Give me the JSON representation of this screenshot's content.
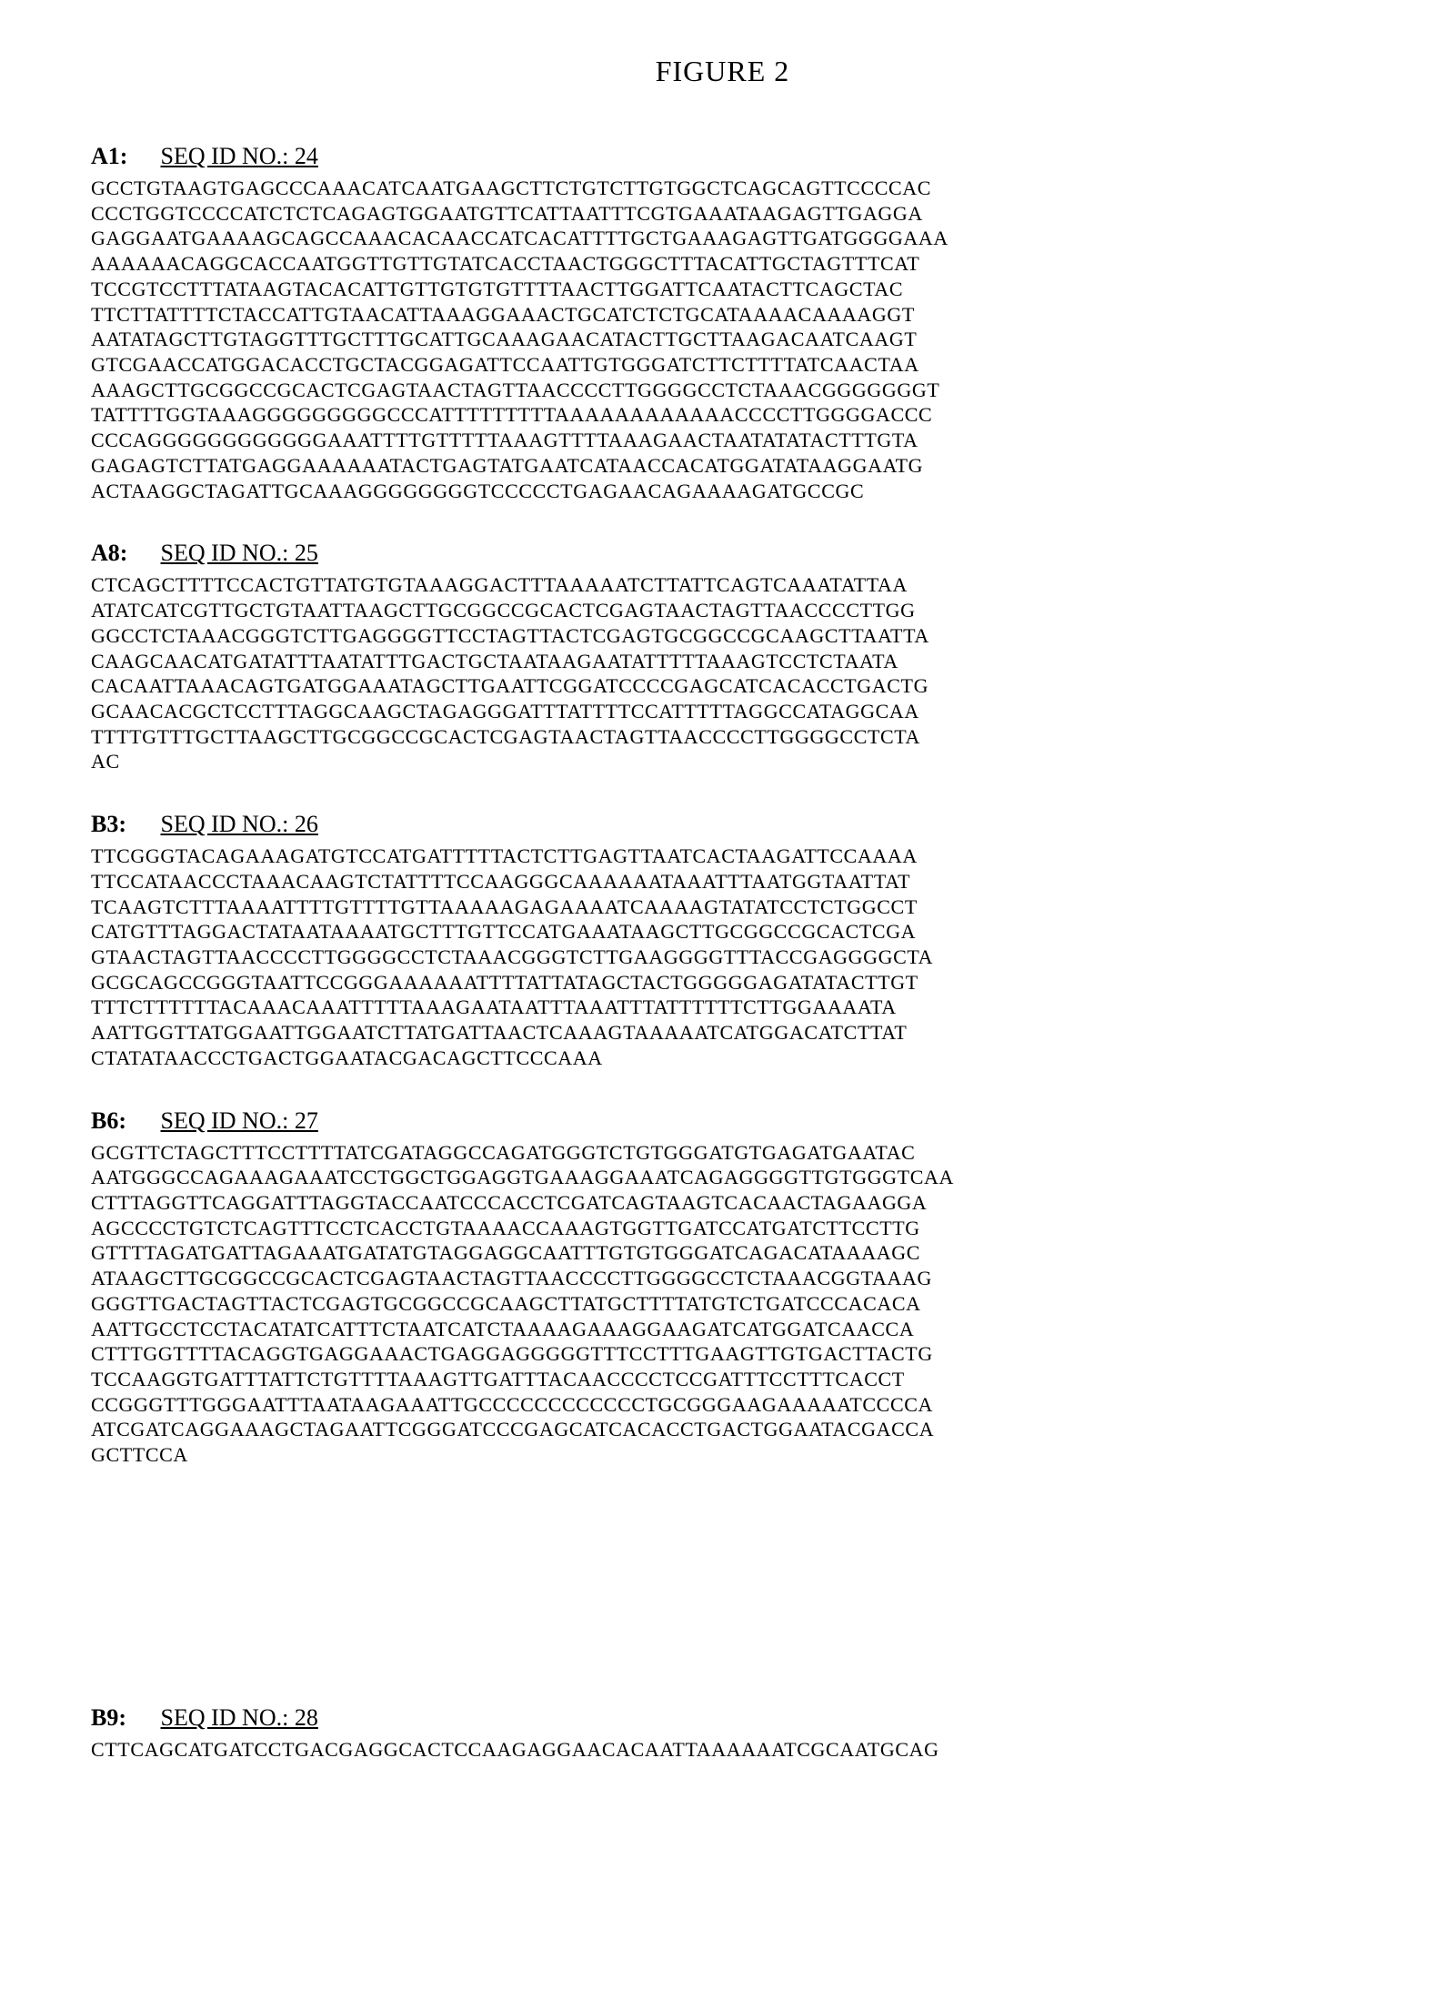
{
  "figure_title": "FIGURE 2",
  "sequences": [
    {
      "label": "A1:",
      "id_text": "SEQ ID NO.: 24",
      "body": "GCCTGTAAGTGAGCCCAAACATCAATGAAGCTTCTGTCTTGTGGCTCAGCAGTTCCCCAC\nCCCTGGTCCCCATCTCTCAGAGTGGAATGTTCATTAATTTCGTGAAATAAGAGTTGAGGA\nGAGGAATGAAAAGCAGCCAAACACAACCATCACATTTTGCTGAAAGAGTTGATGGGGAAA\nAAAAAACAGGCACCAATGGTTGTTGTATCACCTAACTGGGCTTTACATTGCTAGTTTCAT\nTCCGTCCTTTATAAGTACACATTGTTGTGTGTTTTAACTTGGATTCAATACTTCAGCTAC\nTTCTTATTTTCTACCATTGTAACATTAAAGGAAACTGCATCTCTGCATAAAACAAAAGGT\nAATATAGCTTGTAGGTTTGCTTTGCATTGCAAAGAACATACTTGCTTAAGACAATCAAGT\nGTCGAACCATGGACACCTGCTACGGAGATTCCAATTGTGGGATCTTCTTTTATCAACTAA\nAAAGCTTGCGGCCGCACTCGAGTAACTAGTTAACCCCTTGGGGCCTCTAAACGGGGGGGT\nTATTTTGGTAAAGGGGGGGGGCCCATTTTTTTTTAAAAAAAAAAAACCCCTTGGGGACCC\nCCCAGGGGGGGGGGGGAAATTTTGTTTTTAAAGTTTTAAAGAACTAATATATACTTTGTA\nGAGAGTCTTATGAGGAAAAAATACTGAGTATGAATCATAACCACATGGATATAAGGAATG\nACTAAGGCTAGATTGCAAAGGGGGGGGTCCCCCTGAGAACAGAAAAGATGCCGC"
    },
    {
      "label": "A8:",
      "id_text": "SEQ ID NO.: 25",
      "body": "CTCAGCTTTTCCACTGTTATGTGTAAAGGACTTTAAAAATCTTATTCAGTCAAATATTAA\nATATCATCGTTGCTGTAATTAAGCTTGCGGCCGCACTCGAGTAACTAGTTAACCCCTTGG\nGGCCTCTAAACGGGTCTTGAGGGGTTCCTAGTTACTCGAGTGCGGCCGCAAGCTTAATTA\nCAAGCAACATGATATTTAATATTTGACTGCTAATAAGAATATTTTTAAAGTCCTCTAATA\nCACAATTAAACAGTGATGGAAATAGCTTGAATTCGGATCCCCGAGCATCACACCTGACTG\nGCAACACGCTCCTTTAGGCAAGCTAGAGGGATTTATTTTCCATTTTTAGGCCATAGGCAA\nTTTTGTTTGCTTAAGCTTGCGGCCGCACTCGAGTAACTAGTTAACCCCTTGGGGCCTCTA\nAC"
    },
    {
      "label": "B3:",
      "id_text": "SEQ ID NO.: 26",
      "body": "TTCGGGTACAGAAAGATGTCCATGATTTTTACTCTTGAGTTAATCACTAAGATTCCAAAA\nTTCCATAACCCTAAACAAGTCTATTTTCCAAGGGCAAAAAATAAATTTAATGGTAATTAT\nTCAAGTCTTTAAAATTTTGTTTTGTTAAAAAGAGAAAATCAAAAGTATATCCTCTGGCCT\nCATGTTTAGGACTATAATAAAATGCTTTGTTCCATGAAATAAGCTTGCGGCCGCACTCGA\nGTAACTAGTTAACCCCTTGGGGCCTCTAAACGGGTCTTGAAGGGGTTTACCGAGGGGCTA\nGCGCAGCCGGGTAATTCCGGGAAAAAATTTTATTATAGCTACTGGGGGAGATATACTTGT\nTTTCTTTTTTACAAACAAATTTTTAAAGAATAATTTAAATTTATTTTTTCTTGGAAAATA\nAATTGGTTATGGAATTGGAATCTTATGATTAACTCAAAGTAAAAATCATGGACATCTTAT\nCTATATAACCCTGACTGGAATACGACAGCTTCCCAAA"
    },
    {
      "label": "B6:",
      "id_text": "SEQ ID NO.: 27",
      "body": "GCGTTCTAGCTTTCCTTTTATCGATAGGCCAGATGGGTCTGTGGGATGTGAGATGAATAC\nAATGGGCCAGAAAGAAATCCTGGCTGGAGGTGAAAGGAAATCAGAGGGGTTGTGGGTCAA\nCTTTAGGTTCAGGATTTAGGTACCAATCCCACCTCGATCAGTAAGTCACAACTAGAAGGA\nAGCCCCTGTCTCAGTTTCCTCACCTGTAAAACCAAAGTGGTTGATCCATGATCTTCCTTG\nGTTTTAGATGATTAGAAATGATATGTAGGAGGCAATTTGTGTGGGATCAGACATAAAAGC\nATAAGCTTGCGGCCGCACTCGAGTAACTAGTTAACCCCTTGGGGCCTCTAAACGGTAAAG\nGGGTTGACTAGTTACTCGAGTGCGGCCGCAAGCTTATGCTTTTATGTCTGATCCCACACA\nAATTGCCTCCTACATATCATTTCTAATCATCTAAAAGAAAGGAAGATCATGGATCAACCA\nCTTTGGTTTTACAGGTGAGGAAACTGAGGAGGGGGTTTCCTTTGAAGTTGTGACTTACTG\nTCCAAGGTGATTTATTCTGTTTTAAAGTTGATTTACAACCCCTCCGATTTCCTTTCACCT\nCCGGGTTTGGGAATTTAATAAGAAATTGCCCCCCCCCCCCTGCGGGAAGAAAAATCCCCA\nATCGATCAGGAAAGCTAGAATTCGGGATCCCGAGCATCACACCTGACTGGAATACGACCA\nGCTTCCA"
    },
    {
      "label": "B9:",
      "id_text": "SEQ ID NO.: 28",
      "body": "CTTCAGCATGATCCTGACGAGGCACTCCAAGAGGAACACAATTAAAAAATCGCAATGCAG"
    }
  ],
  "big_gap_after_index": 3
}
